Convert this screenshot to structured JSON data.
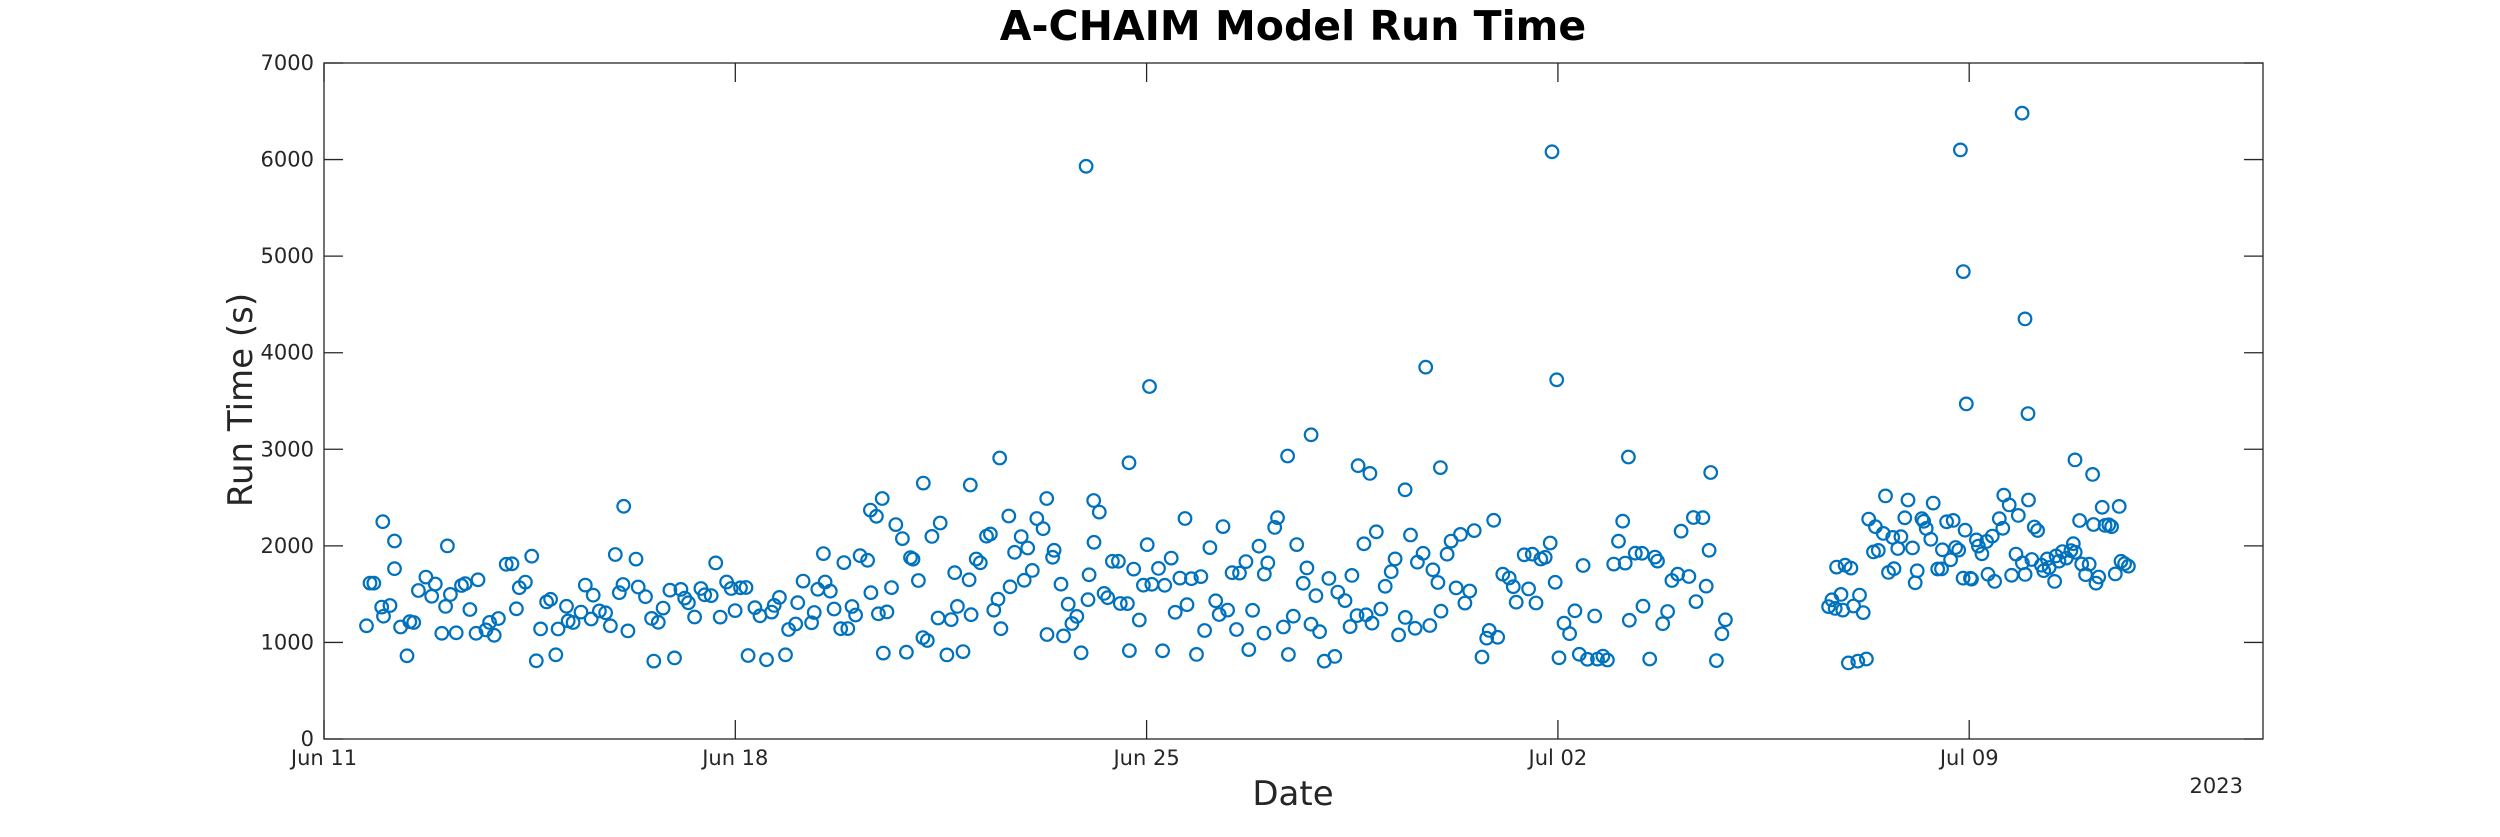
{
  "chart_data": {
    "type": "scatter",
    "title": "A-CHAIM Model Run Time",
    "xlabel": "Date",
    "ylabel": "Run Time (s)",
    "year_label": "2023",
    "marker_color": "#0072BD",
    "marker": "open-circle",
    "grid": false,
    "xlim": [
      0,
      33.0
    ],
    "ylim": [
      0,
      7000
    ],
    "x_units": "days since Jun 11 2023",
    "x_ticks": [
      {
        "value": 0,
        "label": "Jun 11"
      },
      {
        "value": 7,
        "label": "Jun 18"
      },
      {
        "value": 14,
        "label": "Jun 25"
      },
      {
        "value": 21,
        "label": "Jul 02"
      },
      {
        "value": 28,
        "label": "Jul 09"
      }
    ],
    "y_ticks": [
      {
        "value": 0,
        "label": "0"
      },
      {
        "value": 1000,
        "label": "1000"
      },
      {
        "value": 2000,
        "label": "2000"
      },
      {
        "value": 3000,
        "label": "3000"
      },
      {
        "value": 4000,
        "label": "4000"
      },
      {
        "value": 5000,
        "label": "5000"
      },
      {
        "value": 6000,
        "label": "6000"
      },
      {
        "value": 7000,
        "label": "7000"
      }
    ],
    "outliers": [
      {
        "x": 1.0,
        "y": 2250
      },
      {
        "x": 1.2,
        "y": 2050
      },
      {
        "x": 2.1,
        "y": 2000
      },
      {
        "x": 5.1,
        "y": 2410
      },
      {
        "x": 8.5,
        "y": 1920
      },
      {
        "x": 9.5,
        "y": 2490
      },
      {
        "x": 9.3,
        "y": 2370
      },
      {
        "x": 10.2,
        "y": 2650
      },
      {
        "x": 11.0,
        "y": 2630
      },
      {
        "x": 11.5,
        "y": 2910
      },
      {
        "x": 12.3,
        "y": 2490
      },
      {
        "x": 12.97,
        "y": 5930
      },
      {
        "x": 13.1,
        "y": 2470
      },
      {
        "x": 13.7,
        "y": 2860
      },
      {
        "x": 14.05,
        "y": 3650
      },
      {
        "x": 16.4,
        "y": 2930
      },
      {
        "x": 16.8,
        "y": 3150
      },
      {
        "x": 17.6,
        "y": 2830
      },
      {
        "x": 17.8,
        "y": 2750
      },
      {
        "x": 18.4,
        "y": 2580
      },
      {
        "x": 18.75,
        "y": 3850
      },
      {
        "x": 19.0,
        "y": 2810
      },
      {
        "x": 20.9,
        "y": 6080
      },
      {
        "x": 20.98,
        "y": 3720
      },
      {
        "x": 22.2,
        "y": 2920
      },
      {
        "x": 23.6,
        "y": 2760
      },
      {
        "x": 27.85,
        "y": 6100
      },
      {
        "x": 27.9,
        "y": 4840
      },
      {
        "x": 27.95,
        "y": 3470
      },
      {
        "x": 28.9,
        "y": 6480
      },
      {
        "x": 28.95,
        "y": 4350
      },
      {
        "x": 29.0,
        "y": 3370
      },
      {
        "x": 29.8,
        "y": 2890
      },
      {
        "x": 30.1,
        "y": 2740
      }
    ],
    "bands": [
      {
        "x_start": 0.7,
        "x_end": 9.0,
        "base_min": 1050,
        "base_max": 1650,
        "high_max": 1950,
        "low": 800,
        "step": 0.085
      },
      {
        "x_start": 9.0,
        "x_end": 16.0,
        "base_min": 1000,
        "base_max": 2100,
        "high_max": 2350,
        "low": 850,
        "step": 0.075
      },
      {
        "x_start": 16.0,
        "x_end": 23.9,
        "base_min": 1000,
        "base_max": 2100,
        "high_max": 2300,
        "low": 800,
        "step": 0.08
      },
      {
        "x_start": 25.6,
        "x_end": 26.3,
        "base_min": 1200,
        "base_max": 1800,
        "high_max": 1800,
        "low": 760,
        "step": 0.05
      },
      {
        "x_start": 26.3,
        "x_end": 30.7,
        "base_min": 1600,
        "base_max": 2300,
        "high_max": 2550,
        "low": 1600,
        "step": 0.055
      }
    ]
  }
}
